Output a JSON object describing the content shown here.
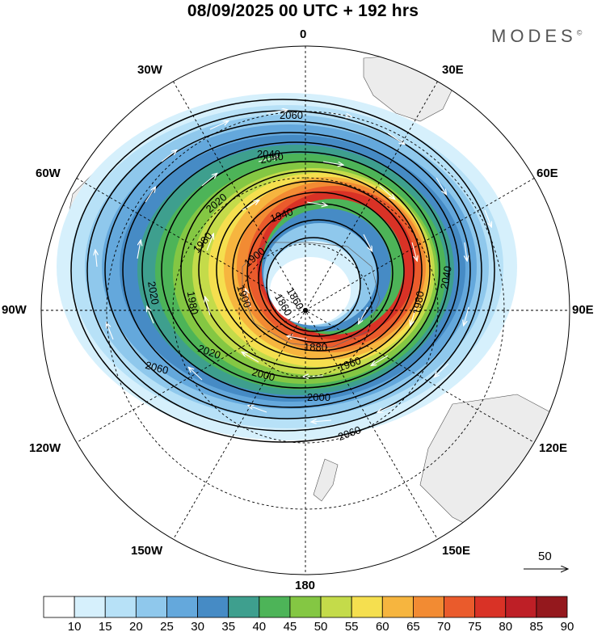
{
  "header": {
    "title": "08/09/2025  00 UTC  + 192 hrs",
    "brand": "MODES",
    "brand_mark": "©"
  },
  "map": {
    "projection": "south-polar-stereographic",
    "longitude_labels": [
      "0",
      "30E",
      "60E",
      "90E",
      "120E",
      "150E",
      "180",
      "150W",
      "120W",
      "90W",
      "60W",
      "30W"
    ],
    "contour_labels": [
      "2060",
      "2040",
      "2020",
      "1980",
      "1940",
      "1900",
      "1860",
      "1880",
      "1980",
      "1960",
      "1980",
      "2000",
      "2020",
      "2040",
      "2060",
      "2060",
      "2020",
      "2000",
      "2040",
      "1860",
      "1900"
    ],
    "wind_speed_levels": [
      10,
      15,
      20,
      25,
      30,
      35,
      40,
      45,
      50,
      55,
      60,
      65,
      70,
      75,
      80,
      85,
      90
    ]
  },
  "legend": {
    "reference_vector": "50",
    "colorbar_labels": [
      "10",
      "15",
      "20",
      "25",
      "30",
      "35",
      "40",
      "45",
      "50",
      "55",
      "60",
      "65",
      "70",
      "75",
      "80",
      "85",
      "90"
    ],
    "colors": [
      "#ffffff",
      "#d6f0fc",
      "#b7e1f7",
      "#8fc8ec",
      "#64a8dc",
      "#468bc5",
      "#3e9f8e",
      "#4db458",
      "#84c743",
      "#c4db4a",
      "#f5df4f",
      "#f6b53f",
      "#f28b33",
      "#ea5b2c",
      "#d93226",
      "#be1f26",
      "#94181d"
    ]
  }
}
